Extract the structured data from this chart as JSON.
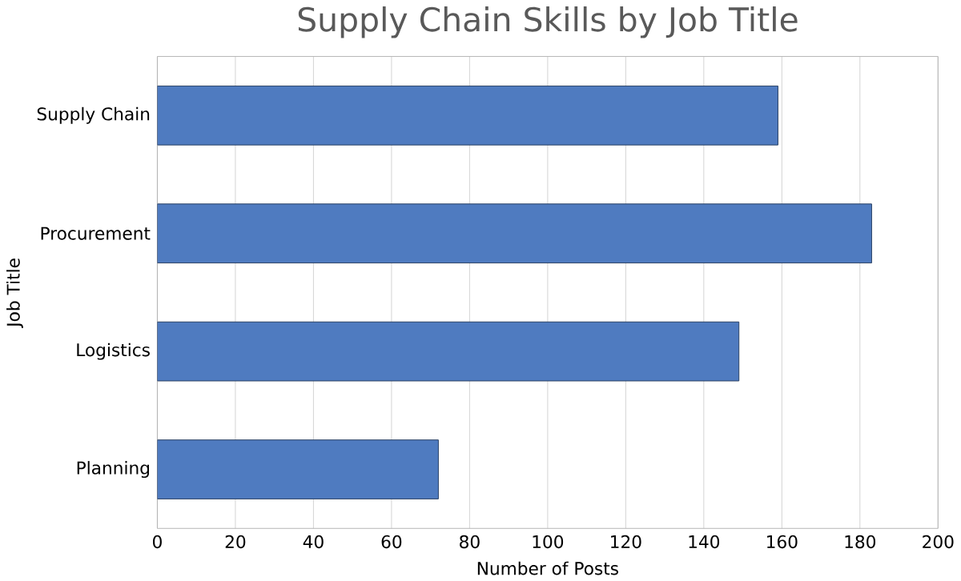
{
  "chart_data": {
    "type": "bar",
    "orientation": "horizontal",
    "title": "Supply Chain Skills by Job Title",
    "xlabel": "Number of Posts",
    "ylabel": "Job Title",
    "categories": [
      "Supply Chain",
      "Procurement",
      "Logistics",
      "Planning"
    ],
    "values": [
      159,
      183,
      149,
      72
    ],
    "color": "#4f7bc0",
    "xlim": [
      0,
      200
    ],
    "xticks": [
      0,
      20,
      40,
      60,
      80,
      100,
      120,
      140,
      160,
      180,
      200
    ],
    "grid": "x"
  }
}
